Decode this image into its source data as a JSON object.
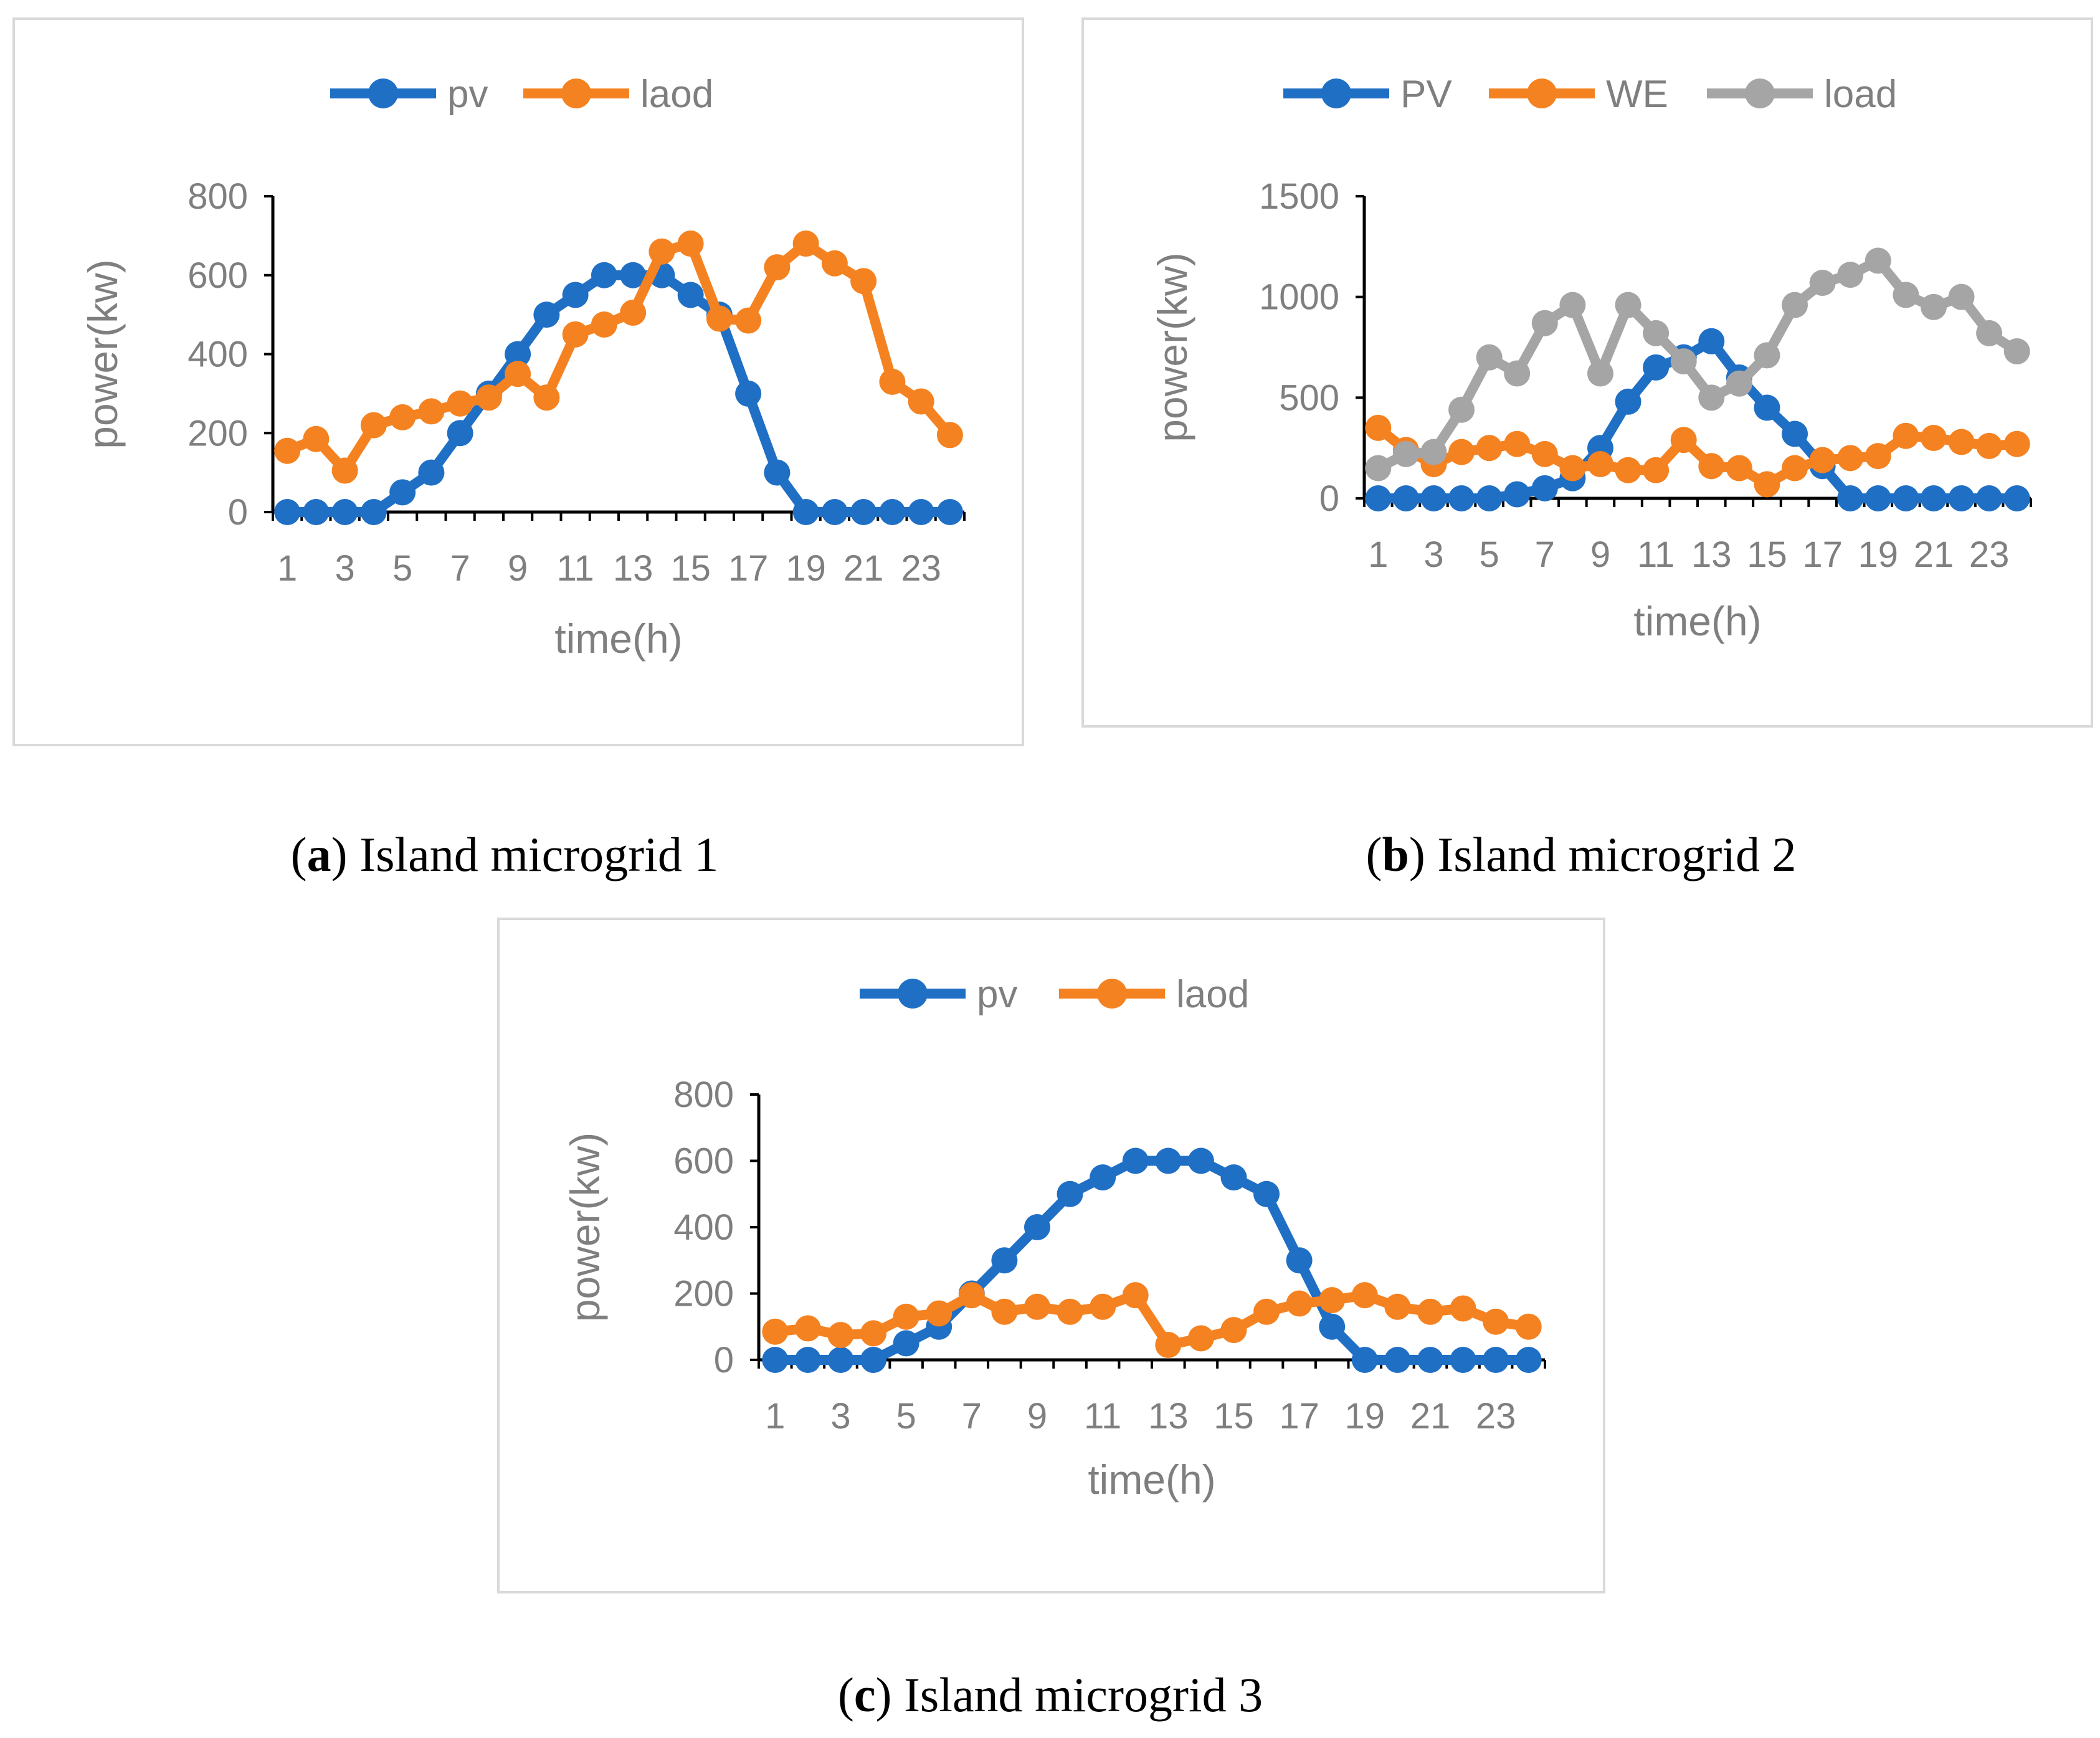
{
  "colors": {
    "blue": "#1f6fc5",
    "orange": "#f58220",
    "gray": "#a5a5a5",
    "frame": "#d9d9d9",
    "text": "#7f7f7f"
  },
  "chart_data": [
    {
      "type": "line",
      "caption_letter": "a",
      "caption_text": "Island microgrid 1",
      "xlabel": "time(h)",
      "ylabel": "power(kw)",
      "ylim": [
        0,
        800
      ],
      "yticks": [
        0,
        200,
        400,
        600,
        800
      ],
      "xticks": [
        1,
        3,
        5,
        7,
        9,
        11,
        13,
        15,
        17,
        19,
        21,
        23
      ],
      "x": [
        1,
        2,
        3,
        4,
        5,
        6,
        7,
        8,
        9,
        10,
        11,
        12,
        13,
        14,
        15,
        16,
        17,
        18,
        19,
        20,
        21,
        22,
        23,
        24
      ],
      "legend": "top",
      "series": [
        {
          "name": "pv",
          "color": "#1f6fc5",
          "values": [
            0,
            0,
            0,
            0,
            50,
            100,
            200,
            300,
            400,
            500,
            550,
            600,
            600,
            600,
            550,
            500,
            300,
            100,
            0,
            0,
            0,
            0,
            0,
            0
          ]
        },
        {
          "name": "laod",
          "color": "#f58220",
          "values": [
            155,
            185,
            105,
            220,
            240,
            255,
            275,
            290,
            350,
            290,
            450,
            475,
            505,
            660,
            680,
            490,
            485,
            620,
            680,
            630,
            585,
            330,
            280,
            195
          ]
        }
      ]
    },
    {
      "type": "line",
      "caption_letter": "b",
      "caption_text": "Island microgrid 2",
      "xlabel": "time(h)",
      "ylabel": "power(kw)",
      "ylim": [
        0,
        1500
      ],
      "yticks": [
        0,
        500,
        1000,
        1500
      ],
      "xticks": [
        1,
        3,
        5,
        7,
        9,
        11,
        13,
        15,
        17,
        19,
        21,
        23
      ],
      "x": [
        1,
        2,
        3,
        4,
        5,
        6,
        7,
        8,
        9,
        10,
        11,
        12,
        13,
        14,
        15,
        16,
        17,
        18,
        19,
        20,
        21,
        22,
        23,
        24
      ],
      "legend": "top",
      "series": [
        {
          "name": "PV",
          "color": "#1f6fc5",
          "values": [
            0,
            0,
            0,
            0,
            0,
            20,
            50,
            100,
            250,
            480,
            650,
            700,
            780,
            600,
            450,
            320,
            160,
            0,
            0,
            0,
            0,
            0,
            0,
            0
          ]
        },
        {
          "name": "WE",
          "color": "#f58220",
          "values": [
            350,
            240,
            170,
            230,
            250,
            270,
            220,
            150,
            170,
            140,
            140,
            290,
            160,
            150,
            70,
            150,
            190,
            200,
            210,
            310,
            300,
            280,
            260,
            270
          ]
        },
        {
          "name": "load",
          "color": "#a5a5a5",
          "values": [
            150,
            220,
            230,
            440,
            700,
            620,
            870,
            960,
            620,
            960,
            820,
            680,
            500,
            570,
            710,
            960,
            1070,
            1110,
            1180,
            1010,
            950,
            1000,
            820,
            730
          ]
        }
      ]
    },
    {
      "type": "line",
      "caption_letter": "c",
      "caption_text": "Island microgrid 3",
      "xlabel": "time(h)",
      "ylabel": "power(kw)",
      "ylim": [
        0,
        800
      ],
      "yticks": [
        0,
        200,
        400,
        600,
        800
      ],
      "xticks": [
        1,
        3,
        5,
        7,
        9,
        11,
        13,
        15,
        17,
        19,
        21,
        23
      ],
      "x": [
        1,
        2,
        3,
        4,
        5,
        6,
        7,
        8,
        9,
        10,
        11,
        12,
        13,
        14,
        15,
        16,
        17,
        18,
        19,
        20,
        21,
        22,
        23,
        24
      ],
      "legend": "top",
      "series": [
        {
          "name": "pv",
          "color": "#1f6fc5",
          "values": [
            0,
            0,
            0,
            0,
            50,
            100,
            200,
            300,
            400,
            500,
            550,
            600,
            600,
            600,
            550,
            500,
            300,
            100,
            0,
            0,
            0,
            0,
            0,
            0
          ]
        },
        {
          "name": "laod",
          "color": "#f58220",
          "values": [
            85,
            95,
            75,
            80,
            130,
            140,
            195,
            145,
            160,
            145,
            160,
            195,
            45,
            65,
            90,
            145,
            170,
            180,
            195,
            160,
            145,
            155,
            115,
            100
          ]
        }
      ]
    }
  ]
}
